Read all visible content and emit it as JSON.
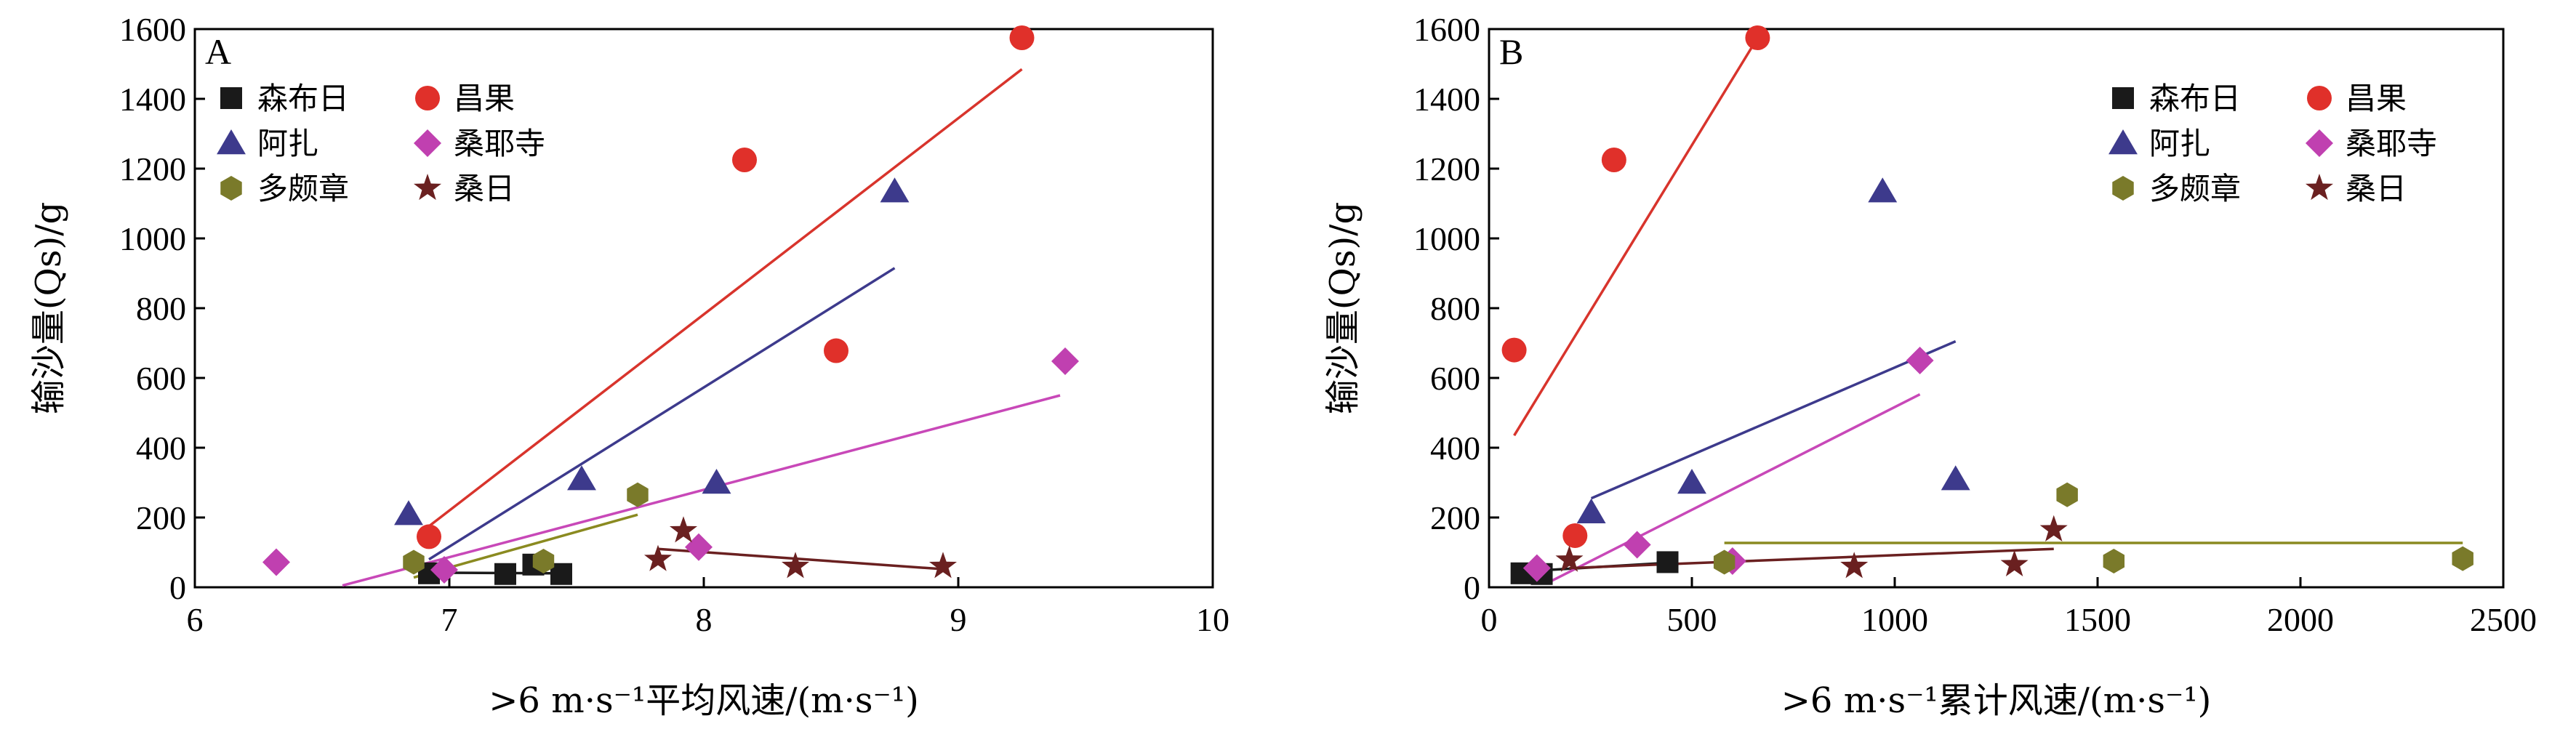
{
  "series_styles": [
    {
      "name": "森布日",
      "color": "#1a1a1a",
      "line_color": "#1a1a1a",
      "marker": "square"
    },
    {
      "name": "昌果",
      "color": "#e0302a",
      "line_color": "#d8342c",
      "marker": "circle"
    },
    {
      "name": "阿扎",
      "color": "#3d3a8c",
      "line_color": "#3d3a8c",
      "marker": "triangle"
    },
    {
      "name": "桑耶寺",
      "color": "#c040b0",
      "line_color": "#c848b8",
      "marker": "diamond"
    },
    {
      "name": "多颇章",
      "color": "#7a7a2a",
      "line_color": "#8a8a20",
      "marker": "hexagon"
    },
    {
      "name": "桑日",
      "color": "#6a2020",
      "line_color": "#6a2020",
      "marker": "star"
    }
  ],
  "chart_data": [
    {
      "type": "scatter",
      "panel": "A",
      "xlabel": ">6 m·s⁻¹平均风速/(m·s⁻¹)",
      "ylabel": "输沙量(Qs)/g",
      "xlim": [
        6,
        10
      ],
      "ylim": [
        0,
        1600
      ],
      "xticks": [
        6,
        7,
        8,
        9,
        10
      ],
      "yticks": [
        0,
        200,
        400,
        600,
        800,
        1000,
        1200,
        1400,
        1600
      ],
      "legend": "top-left",
      "grid": false,
      "series": [
        {
          "name": "森布日",
          "points": [
            [
              6.92,
              40
            ],
            [
              7.22,
              38
            ],
            [
              7.33,
              65
            ],
            [
              7.44,
              38
            ]
          ],
          "fit": [
            [
              6.9,
              42
            ],
            [
              7.4,
              40
            ]
          ]
        },
        {
          "name": "昌果",
          "points": [
            [
              6.92,
              145
            ],
            [
              8.16,
              1225
            ],
            [
              8.52,
              678
            ],
            [
              9.25,
              1575
            ]
          ],
          "fit": [
            [
              6.92,
              175
            ],
            [
              9.25,
              1485
            ]
          ]
        },
        {
          "name": "阿扎",
          "points": [
            [
              6.84,
              210
            ],
            [
              7.52,
              310
            ],
            [
              8.05,
              300
            ],
            [
              8.75,
              1135
            ]
          ],
          "fit": [
            [
              6.92,
              80
            ],
            [
              8.75,
              915
            ]
          ]
        },
        {
          "name": "桑耶寺",
          "points": [
            [
              6.32,
              72
            ],
            [
              6.98,
              50
            ],
            [
              7.98,
              115
            ],
            [
              9.42,
              648
            ]
          ],
          "fit": [
            [
              6.58,
              5
            ],
            [
              9.4,
              550
            ]
          ]
        },
        {
          "name": "多颇章",
          "points": [
            [
              6.86,
              72
            ],
            [
              7.37,
              75
            ],
            [
              7.74,
              265
            ]
          ],
          "fit": [
            [
              6.86,
              28
            ],
            [
              7.74,
              208
            ]
          ]
        },
        {
          "name": "桑日",
          "points": [
            [
              7.82,
              80
            ],
            [
              7.92,
              162
            ],
            [
              8.36,
              60
            ],
            [
              8.94,
              60
            ]
          ],
          "fit": [
            [
              7.82,
              110
            ],
            [
              8.94,
              52
            ]
          ]
        }
      ]
    },
    {
      "type": "scatter",
      "panel": "B",
      "xlabel": ">6 m·s⁻¹累计风速/(m·s⁻¹)",
      "ylabel": "输沙量(Qs)/g",
      "xlim": [
        0,
        2500
      ],
      "ylim": [
        0,
        1600
      ],
      "xticks": [
        0,
        500,
        1000,
        1500,
        2000,
        2500
      ],
      "yticks": [
        0,
        200,
        400,
        600,
        800,
        1000,
        1200,
        1400,
        1600
      ],
      "legend": "top-right",
      "grid": false,
      "series": [
        {
          "name": "森布日",
          "points": [
            [
              80,
              40
            ],
            [
              130,
              38
            ],
            [
              440,
              72
            ]
          ],
          "fit": [
            [
              80,
              45
            ],
            [
              440,
              70
            ]
          ]
        },
        {
          "name": "昌果",
          "points": [
            [
              62,
              680
            ],
            [
              212,
              148
            ],
            [
              308,
              1225
            ],
            [
              662,
              1575
            ]
          ],
          "fit": [
            [
              62,
              435
            ],
            [
              662,
              1575
            ]
          ]
        },
        {
          "name": "阿扎",
          "points": [
            [
              252,
              215
            ],
            [
              500,
              300
            ],
            [
              970,
              1135
            ],
            [
              1150,
              310
            ]
          ],
          "fit": [
            [
              252,
              255
            ],
            [
              1150,
              705
            ]
          ]
        },
        {
          "name": "桑耶寺",
          "points": [
            [
              118,
              55
            ],
            [
              365,
              122
            ],
            [
              600,
              75
            ],
            [
              1062,
              650
            ]
          ],
          "fit": [
            [
              140,
              10
            ],
            [
              1062,
              553
            ]
          ]
        },
        {
          "name": "多颇章",
          "points": [
            [
              580,
              72
            ],
            [
              1425,
              265
            ],
            [
              1540,
              75
            ],
            [
              2400,
              82
            ]
          ],
          "fit": [
            [
              580,
              127
            ],
            [
              2400,
              127
            ]
          ]
        },
        {
          "name": "桑日",
          "points": [
            [
              198,
              78
            ],
            [
              900,
              60
            ],
            [
              1295,
              65
            ],
            [
              1392,
              165
            ]
          ],
          "fit": [
            [
              198,
              55
            ],
            [
              1392,
              110
            ]
          ]
        }
      ]
    }
  ]
}
